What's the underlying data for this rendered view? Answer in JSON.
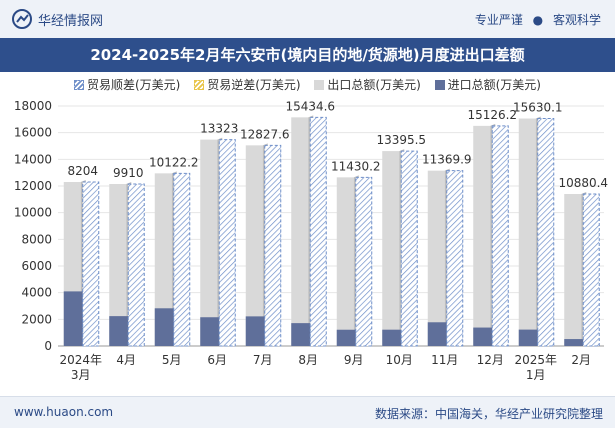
{
  "header": {
    "brand": "华经情报网",
    "tag1": "专业严谨",
    "tag2": "客观科学",
    "separator": "●"
  },
  "title": "2024-2025年2月年六安市(境内目的地/货源地)月度进出口差额",
  "legend": {
    "surplus": "贸易顺差(万美元)",
    "deficit": "贸易逆差(万美元)",
    "export": "出口总额(万美元)",
    "import": "进口总额(万美元)"
  },
  "footer": {
    "site": "www.huaon.com",
    "source": "数据来源：中国海关，华经产业研究院整理"
  },
  "colors": {
    "export_bar": "#d9d9d9",
    "export_side": "#bdbdbd",
    "import_bar": "#5f6f9a",
    "surplus_line": "#6f8fc9",
    "deficit_line": "#e8c54a",
    "title_bg": "#2e4f8c"
  },
  "chart_data": {
    "type": "bar",
    "categories": [
      "2024年\n3月",
      "4月",
      "5月",
      "6月",
      "7月",
      "8月",
      "9月",
      "10月",
      "11月",
      "12月",
      "2025年\n1月",
      "2月"
    ],
    "series": [
      {
        "name": "出口总额(万美元)",
        "values": [
          12300,
          12150,
          12950,
          15480,
          15050,
          17150,
          12650,
          14620,
          13150,
          16510,
          17060,
          11400
        ]
      },
      {
        "name": "进口总额(万美元)",
        "values": [
          4096,
          2240,
          2828,
          2157,
          2222,
          1715,
          1220,
          1224,
          1780,
          1384,
          1230,
          520
        ]
      },
      {
        "name": "贸易顺差(万美元)",
        "values": [
          8204,
          9910,
          10122.2,
          13323,
          12827.6,
          15434.6,
          11430.2,
          13395.5,
          11369.9,
          15126.2,
          15630.1,
          10880.4
        ]
      }
    ],
    "data_labels": [
      "8204",
      "9910",
      "10122.2",
      "13323",
      "12827.6",
      "15434.6",
      "11430.2",
      "13395.5",
      "11369.9",
      "15126.2",
      "15630.1",
      "10880.4"
    ],
    "yticks": [
      "0",
      "2000",
      "4000",
      "6000",
      "8000",
      "10000",
      "12000",
      "14000",
      "16000",
      "18000"
    ],
    "ylim": [
      0,
      18000
    ],
    "xlabel": "",
    "ylabel": "",
    "legend_position": "top"
  }
}
